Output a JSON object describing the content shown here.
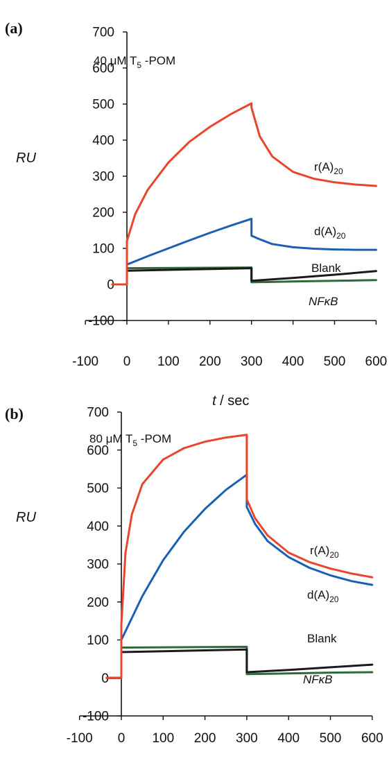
{
  "chart_data": [
    {
      "panel": "(a)",
      "type": "line",
      "annotation": {
        "main": "40 μM T",
        "sub": "5",
        "rest": " -POM"
      },
      "ylabel": "RU",
      "xlabel": {
        "italic": "t",
        "rest": " / sec"
      },
      "xlim": [
        -100,
        600
      ],
      "ylim": [
        -100,
        700
      ],
      "xticks": [
        -100,
        0,
        100,
        200,
        300,
        400,
        500,
        600
      ],
      "yticks": [
        -100,
        0,
        100,
        200,
        300,
        400,
        500,
        600,
        700
      ],
      "series": [
        {
          "name": "r(A)",
          "name_sub": "20",
          "color": "#e8452c",
          "x": [
            -35,
            0,
            0,
            20,
            50,
            100,
            150,
            200,
            250,
            300,
            300,
            320,
            350,
            400,
            450,
            500,
            550,
            600
          ],
          "y": [
            0,
            0,
            120,
            195,
            262,
            338,
            395,
            437,
            472,
            502,
            490,
            410,
            355,
            312,
            293,
            283,
            277,
            273
          ]
        },
        {
          "name": "d(A)",
          "name_sub": "20",
          "color": "#1a5fb4",
          "x": [
            -35,
            0,
            0,
            50,
            100,
            150,
            200,
            250,
            300,
            300,
            320,
            350,
            400,
            450,
            500,
            550,
            600
          ],
          "y": [
            0,
            0,
            55,
            78,
            100,
            122,
            143,
            163,
            182,
            135,
            125,
            112,
            103,
            99,
            97,
            96,
            96
          ]
        },
        {
          "name": "Blank",
          "color": "#1a1a1a",
          "x": [
            -35,
            0,
            0,
            300,
            300,
            400,
            500,
            600
          ],
          "y": [
            0,
            0,
            38,
            45,
            10,
            18,
            27,
            37
          ]
        },
        {
          "name": "NFκB",
          "italic": true,
          "color": "#2f6b3a",
          "x": [
            -35,
            0,
            0,
            300,
            300,
            400,
            500,
            600
          ],
          "y": [
            0,
            0,
            45,
            47,
            6,
            8,
            10,
            12
          ]
        }
      ]
    },
    {
      "panel": "(b)",
      "type": "line",
      "annotation": {
        "main": "80 μM T",
        "sub": "5",
        "rest": " -POM"
      },
      "ylabel": "RU",
      "xlabel": {
        "italic": "t",
        "rest": " / sec"
      },
      "xlim": [
        -100,
        600
      ],
      "ylim": [
        -100,
        700
      ],
      "xticks": [
        -100,
        0,
        100,
        200,
        300,
        400,
        500,
        600
      ],
      "yticks": [
        -100,
        0,
        100,
        200,
        300,
        400,
        500,
        600,
        700
      ],
      "series": [
        {
          "name": "r(A)",
          "name_sub": "20",
          "color": "#e8452c",
          "x": [
            -35,
            0,
            0,
            10,
            25,
            50,
            100,
            150,
            200,
            250,
            300,
            300,
            320,
            350,
            400,
            450,
            500,
            550,
            600
          ],
          "y": [
            0,
            0,
            140,
            330,
            430,
            510,
            575,
            605,
            622,
            633,
            640,
            470,
            420,
            375,
            330,
            305,
            288,
            275,
            265
          ]
        },
        {
          "name": "d(A)",
          "name_sub": "20",
          "color": "#1a5fb4",
          "x": [
            -35,
            0,
            0,
            50,
            100,
            150,
            200,
            250,
            300,
            300,
            320,
            350,
            400,
            450,
            500,
            550,
            600
          ],
          "y": [
            0,
            0,
            100,
            215,
            310,
            385,
            445,
            495,
            535,
            450,
            405,
            360,
            318,
            290,
            270,
            255,
            245
          ]
        },
        {
          "name": "Blank",
          "color": "#1a1a1a",
          "x": [
            -35,
            0,
            0,
            300,
            300,
            400,
            500,
            600
          ],
          "y": [
            0,
            0,
            68,
            75,
            15,
            21,
            28,
            35
          ]
        },
        {
          "name": "NFκB",
          "italic": true,
          "color": "#2f6b3a",
          "x": [
            -35,
            0,
            0,
            300,
            300,
            400,
            500,
            600
          ],
          "y": [
            0,
            0,
            80,
            82,
            10,
            12,
            14,
            15
          ]
        }
      ]
    }
  ]
}
